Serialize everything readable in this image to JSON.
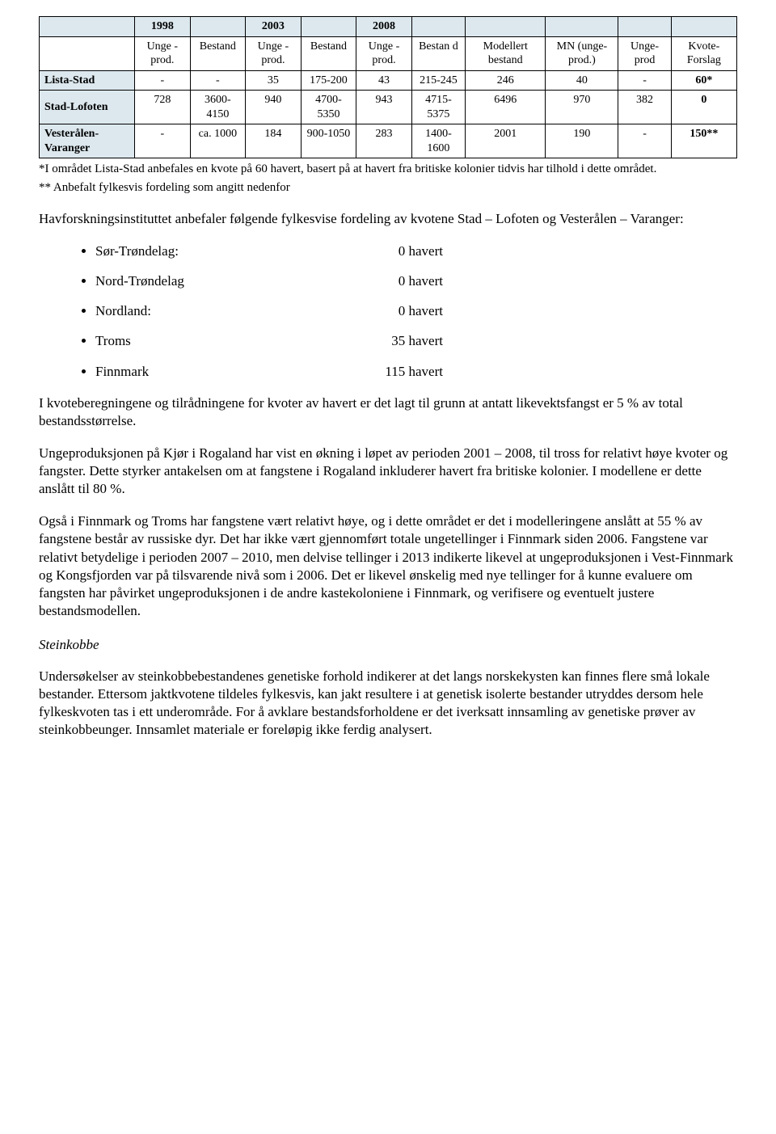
{
  "table": {
    "year_headers": [
      "",
      "1998",
      "",
      "2003",
      "",
      "2008",
      "",
      "",
      "",
      "",
      ""
    ],
    "sub_headers": [
      "",
      "Unge -prod.",
      "Bestand",
      "Unge -prod.",
      "Bestand",
      "Unge -prod.",
      "Bestan d",
      "Modellert bestand",
      "MN (unge-prod.)",
      "Unge-prod",
      "Kvote-Forslag"
    ],
    "rows": [
      {
        "label": "Lista-Stad",
        "cells": [
          "-",
          "-",
          "35",
          "175-200",
          "43",
          "215-245",
          "246",
          "40",
          "-",
          "60*"
        ]
      },
      {
        "label": "Stad-Lofoten",
        "cells": [
          "728",
          "3600-4150",
          "940",
          "4700-5350",
          "943",
          "4715-5375",
          "6496",
          "970",
          "382",
          "0"
        ]
      },
      {
        "label": "Vesterålen-Varanger",
        "cells": [
          "-",
          "ca. 1000",
          "184",
          "900-1050",
          "283",
          "1400-1600",
          "2001",
          "190",
          "-",
          "150**"
        ]
      }
    ]
  },
  "footnote1": "*I området Lista-Stad anbefales en kvote på 60 havert, basert på at havert fra britiske kolonier tidvis har tilhold i dette området.",
  "footnote2": "** Anbefalt fylkesvis fordeling som angitt nedenfor",
  "para_intro": "Havforskningsinstituttet anbefaler følgende fylkesvise fordeling av kvotene Stad – Lofoten og Vesterålen – Varanger:",
  "fylker": [
    {
      "label": "Sør-Trøndelag:",
      "value": "0 havert"
    },
    {
      "label": "Nord-Trøndelag",
      "value": "0 havert"
    },
    {
      "label": "Nordland:",
      "value": "0 havert"
    },
    {
      "label": "Troms",
      "value": "35 havert"
    },
    {
      "label": "Finnmark",
      "value": "115 havert"
    }
  ],
  "para1": "I kvoteberegningene og tilrådningene for kvoter av havert er det lagt til grunn at antatt likevektsfangst er 5 % av total bestandsstørrelse.",
  "para2": "Ungeproduksjonen på Kjør i Rogaland har vist en økning i løpet av perioden 2001 – 2008, til tross for relativt høye kvoter og fangster. Dette styrker antakelsen om at fangstene i Rogaland inkluderer havert fra britiske kolonier. I modellene er dette anslått til 80 %.",
  "para3": "Også i Finnmark og Troms har fangstene vært relativt høye, og i dette området er det i modelleringene anslått at 55 % av fangstene består av russiske dyr. Det har ikke vært gjennomført totale ungetellinger i Finnmark siden 2006. Fangstene var relativt betydelige i perioden 2007 – 2010, men delvise tellinger i 2013 indikerte likevel at ungeproduksjonen i Vest-Finnmark og Kongsfjorden var på tilsvarende nivå som i 2006. Det er likevel ønskelig med nye tellinger for å kunne evaluere om fangsten har påvirket ungeproduksjonen i de andre kastekoloniene i Finnmark, og verifisere og eventuelt justere bestandsmodellen.",
  "section_title": "Steinkobbe",
  "para4": "Undersøkelser av steinkobbebestandenes genetiske forhold indikerer at det langs norskekysten kan finnes flere små lokale bestander. Ettersom jaktkvotene tildeles fylkesvis, kan jakt resultere i at genetisk isolerte bestander utryddes dersom hele fylkeskvoten tas i ett underområde. For å avklare bestandsforholdene er det iverksatt innsamling av genetiske prøver av steinkobbeunger. Innsamlet materiale er foreløpig ikke ferdig analysert."
}
